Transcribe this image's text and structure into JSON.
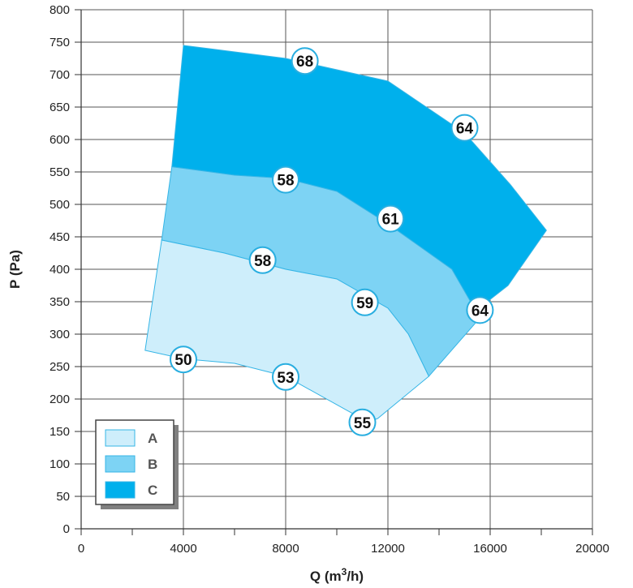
{
  "chart_data": {
    "type": "area",
    "xlabel": "Q (m³/h)",
    "ylabel": "P (Pa)",
    "xlim": [
      0,
      20000
    ],
    "ylim": [
      0,
      800
    ],
    "x_ticks": [
      0,
      4000,
      8000,
      12000,
      16000,
      20000
    ],
    "x_minor_step": 2000,
    "y_ticks": [
      0,
      50,
      100,
      150,
      200,
      250,
      300,
      350,
      400,
      450,
      500,
      550,
      600,
      650,
      700,
      750,
      800
    ],
    "grid": true,
    "legend_position": "bottom-left",
    "series": [
      {
        "name": "C",
        "color": "#00b0ec",
        "points": [
          [
            4000,
            745
          ],
          [
            8000,
            725
          ],
          [
            12000,
            690
          ],
          [
            15000,
            610
          ],
          [
            16800,
            530
          ],
          [
            18200,
            460
          ],
          [
            16700,
            375
          ],
          [
            15400,
            335
          ],
          [
            14500,
            400
          ],
          [
            12000,
            470
          ],
          [
            10000,
            520
          ],
          [
            8000,
            540
          ],
          [
            6000,
            545
          ],
          [
            3550,
            558
          ]
        ]
      },
      {
        "name": "B",
        "color": "#7dd3f4",
        "points": [
          [
            3550,
            558
          ],
          [
            6000,
            545
          ],
          [
            8000,
            540
          ],
          [
            10000,
            520
          ],
          [
            12000,
            470
          ],
          [
            14500,
            400
          ],
          [
            15600,
            325
          ],
          [
            13600,
            235
          ],
          [
            12800,
            300
          ],
          [
            12000,
            340
          ],
          [
            10000,
            385
          ],
          [
            8000,
            400
          ],
          [
            5600,
            425
          ],
          [
            3150,
            445
          ]
        ]
      },
      {
        "name": "A",
        "color": "#ceeefb",
        "points": [
          [
            3150,
            445
          ],
          [
            5600,
            425
          ],
          [
            8000,
            400
          ],
          [
            10000,
            385
          ],
          [
            12000,
            340
          ],
          [
            12800,
            300
          ],
          [
            13600,
            235
          ],
          [
            11600,
            170
          ],
          [
            11200,
            165
          ],
          [
            8000,
            235
          ],
          [
            6000,
            255
          ],
          [
            4000,
            262
          ],
          [
            2500,
            275
          ]
        ]
      }
    ],
    "markers": [
      {
        "label": "68",
        "x": 8750,
        "y": 721
      },
      {
        "label": "64",
        "x": 15000,
        "y": 618
      },
      {
        "label": "58",
        "x": 8000,
        "y": 538
      },
      {
        "label": "61",
        "x": 12100,
        "y": 478
      },
      {
        "label": "58",
        "x": 7100,
        "y": 414
      },
      {
        "label": "59",
        "x": 11100,
        "y": 349
      },
      {
        "label": "64",
        "x": 15600,
        "y": 337
      },
      {
        "label": "50",
        "x": 4000,
        "y": 261
      },
      {
        "label": "53",
        "x": 8000,
        "y": 234
      },
      {
        "label": "55",
        "x": 11000,
        "y": 164
      }
    ],
    "legend": [
      {
        "label": "A",
        "color": "#ceeefb"
      },
      {
        "label": "B",
        "color": "#7dd3f4"
      },
      {
        "label": "C",
        "color": "#00b0ec"
      }
    ]
  }
}
